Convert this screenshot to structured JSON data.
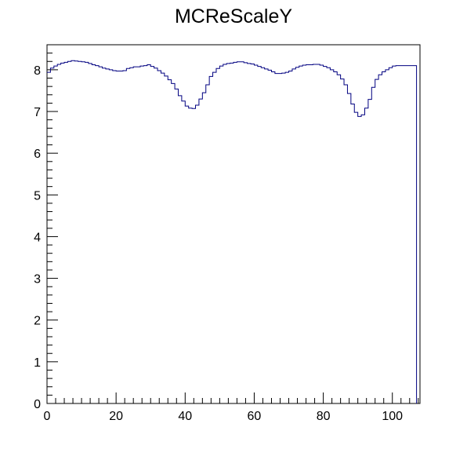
{
  "chart_data": {
    "type": "histogram",
    "title": "MCReScaleY",
    "xlabel": "",
    "ylabel": "",
    "xlim": [
      0,
      108
    ],
    "ylim": [
      0,
      8.6
    ],
    "grid": false,
    "x_ticks": [
      0,
      20,
      40,
      60,
      80,
      100
    ],
    "y_ticks": [
      0,
      1,
      2,
      3,
      4,
      5,
      6,
      7,
      8
    ],
    "bin_width": 1,
    "series": [
      {
        "color": "#000080",
        "values": [
          7.94,
          8.04,
          8.09,
          8.13,
          8.16,
          8.18,
          8.2,
          8.22,
          8.21,
          8.2,
          8.19,
          8.18,
          8.15,
          8.12,
          8.1,
          8.07,
          8.04,
          8.02,
          8.0,
          7.98,
          7.97,
          7.97,
          7.98,
          8.03,
          8.05,
          8.07,
          8.07,
          8.09,
          8.1,
          8.12,
          8.08,
          8.04,
          7.98,
          7.92,
          7.85,
          7.76,
          7.67,
          7.54,
          7.38,
          7.25,
          7.13,
          7.08,
          7.07,
          7.15,
          7.3,
          7.45,
          7.64,
          7.84,
          7.94,
          8.03,
          8.09,
          8.13,
          8.15,
          8.16,
          8.18,
          8.19,
          8.19,
          8.17,
          8.15,
          8.14,
          8.11,
          8.08,
          8.05,
          8.02,
          7.99,
          7.95,
          7.91,
          7.91,
          7.92,
          7.94,
          7.97,
          8.02,
          8.06,
          8.09,
          8.11,
          8.12,
          8.12,
          8.13,
          8.13,
          8.11,
          8.08,
          8.05,
          8.0,
          7.95,
          7.88,
          7.78,
          7.64,
          7.43,
          7.18,
          6.98,
          6.88,
          6.92,
          7.08,
          7.29,
          7.58,
          7.77,
          7.88,
          7.95,
          8.0,
          8.05,
          8.09,
          8.1,
          8.1,
          8.1,
          8.1,
          8.1,
          8.1
        ]
      }
    ]
  }
}
